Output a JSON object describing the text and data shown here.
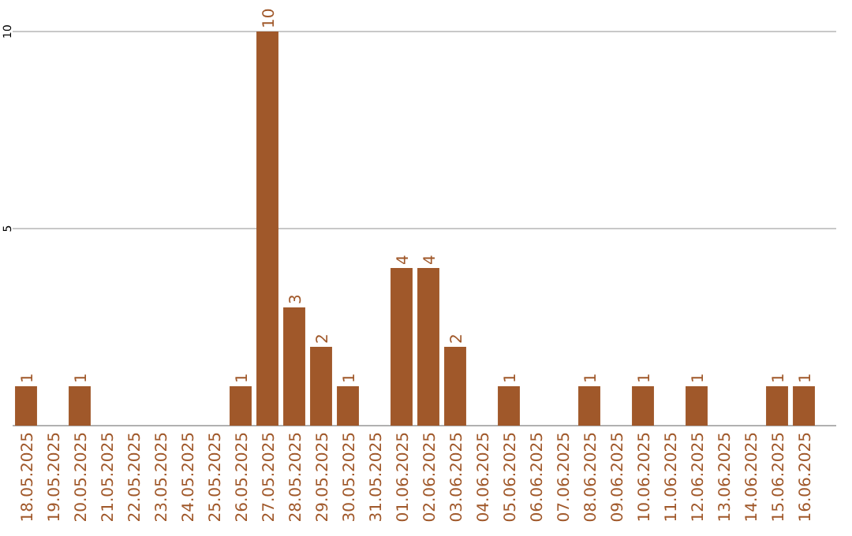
{
  "chart_data": {
    "type": "bar",
    "categories": [
      "18.05.2025",
      "19.05.2025",
      "20.05.2025",
      "21.05.2025",
      "22.05.2025",
      "23.05.2025",
      "24.05.2025",
      "25.05.2025",
      "26.05.2025",
      "27.05.2025",
      "28.05.2025",
      "29.05.2025",
      "30.05.2025",
      "31.05.2025",
      "01.06.2025",
      "02.06.2025",
      "03.06.2025",
      "04.06.2025",
      "05.06.2025",
      "06.06.2025",
      "07.06.2025",
      "08.06.2025",
      "09.06.2025",
      "10.06.2025",
      "11.06.2025",
      "12.06.2025",
      "13.06.2025",
      "14.06.2025",
      "15.06.2025",
      "16.06.2025"
    ],
    "values": [
      1,
      0,
      1,
      0,
      0,
      0,
      0,
      0,
      1,
      10,
      3,
      2,
      1,
      0,
      4,
      4,
      2,
      0,
      1,
      0,
      0,
      1,
      0,
      1,
      0,
      1,
      0,
      0,
      1,
      1
    ],
    "value_labels": [
      "1",
      null,
      "1",
      null,
      null,
      null,
      null,
      null,
      "1",
      "10",
      "3",
      "2",
      "1",
      null,
      "4",
      "4",
      "2",
      null,
      "1",
      null,
      null,
      "1",
      null,
      "1",
      null,
      "1",
      null,
      null,
      "1",
      "1"
    ],
    "color": "#a0582a",
    "ylim": [
      0,
      10
    ],
    "yticks": [
      5,
      10
    ],
    "grid": "y"
  }
}
